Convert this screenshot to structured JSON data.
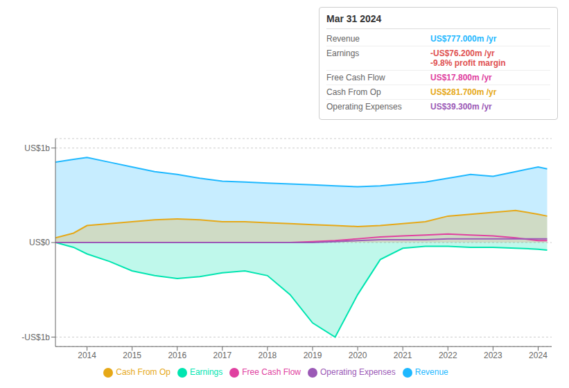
{
  "chart_data": {
    "type": "area",
    "title": "Mar 31 2024",
    "x": [
      2013.3,
      2013.7,
      2014.0,
      2014.5,
      2015.0,
      2015.5,
      2016.0,
      2016.5,
      2017.0,
      2017.5,
      2018.0,
      2018.5,
      2019.0,
      2019.5,
      2020.0,
      2020.5,
      2021.0,
      2021.5,
      2022.0,
      2022.5,
      2023.0,
      2023.5,
      2024.0,
      2024.2
    ],
    "xlim": [
      2013.3,
      2024.3
    ],
    "xticks": [
      2014,
      2015,
      2016,
      2017,
      2018,
      2019,
      2020,
      2021,
      2022,
      2023,
      2024
    ],
    "ylim": [
      -1.1,
      1.1
    ],
    "yticks": [
      {
        "value": 1,
        "label": "US$1b"
      },
      {
        "value": 0,
        "label": "US$0"
      },
      {
        "value": -1,
        "label": "-US$1b"
      }
    ],
    "grid": true,
    "legend": "bottom",
    "series": [
      {
        "name": "Revenue",
        "type": "area",
        "color": "#1eb8ff",
        "values": [
          0.85,
          0.88,
          0.9,
          0.85,
          0.8,
          0.75,
          0.72,
          0.68,
          0.65,
          0.64,
          0.63,
          0.62,
          0.61,
          0.6,
          0.59,
          0.6,
          0.62,
          0.64,
          0.68,
          0.72,
          0.7,
          0.75,
          0.8,
          0.78
        ]
      },
      {
        "name": "Earnings",
        "type": "area",
        "color": "#00e5b0",
        "values": [
          0.0,
          -0.05,
          -0.12,
          -0.2,
          -0.3,
          -0.35,
          -0.38,
          -0.36,
          -0.32,
          -0.3,
          -0.35,
          -0.55,
          -0.85,
          -1.0,
          -0.55,
          -0.18,
          -0.06,
          -0.04,
          -0.04,
          -0.05,
          -0.05,
          -0.06,
          -0.07,
          -0.08
        ]
      },
      {
        "name": "Free Cash Flow",
        "type": "line",
        "color": "#e040a0",
        "values": [
          0.0,
          0.0,
          0.0,
          0.0,
          0.0,
          0.0,
          0.0,
          0.0,
          0.0,
          0.0,
          0.0,
          0.0,
          0.01,
          0.02,
          0.04,
          0.06,
          0.07,
          0.08,
          0.09,
          0.08,
          0.07,
          0.05,
          0.02,
          0.02
        ]
      },
      {
        "name": "Cash From Op",
        "type": "area",
        "color": "#e6a817",
        "values": [
          0.05,
          0.1,
          0.18,
          0.2,
          0.22,
          0.24,
          0.25,
          0.24,
          0.22,
          0.22,
          0.21,
          0.2,
          0.19,
          0.18,
          0.17,
          0.18,
          0.2,
          0.22,
          0.28,
          0.3,
          0.32,
          0.34,
          0.3,
          0.28
        ]
      },
      {
        "name": "Operating Expenses",
        "type": "line",
        "color": "#9b59b6",
        "values": [
          0.0,
          0.0,
          0.0,
          0.0,
          0.0,
          0.0,
          0.0,
          0.0,
          0.0,
          0.0,
          0.0,
          0.0,
          0.0,
          0.01,
          0.02,
          0.03,
          0.03,
          0.03,
          0.04,
          0.04,
          0.04,
          0.04,
          0.04,
          0.04
        ]
      }
    ],
    "annotations": [
      {
        "label": "Revenue",
        "text": [
          "US$777.000m /yr"
        ],
        "color": "#1eb8ff"
      },
      {
        "label": "Earnings",
        "text": [
          "-US$76.200m /yr",
          "-9.8% profit margin"
        ],
        "color": "#e05050"
      },
      {
        "label": "Free Cash Flow",
        "text": [
          "US$17.800m /yr"
        ],
        "color": "#e040a0"
      },
      {
        "label": "Cash From Op",
        "text": [
          "US$281.700m /yr"
        ],
        "color": "#e6a817"
      },
      {
        "label": "Operating Expenses",
        "text": [
          "US$39.300m /yr"
        ],
        "color": "#9b59b6"
      }
    ]
  }
}
